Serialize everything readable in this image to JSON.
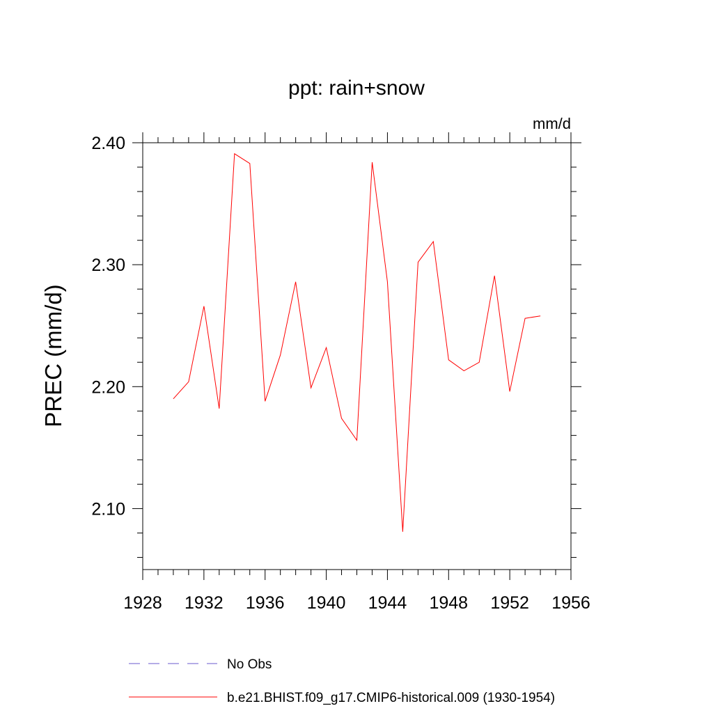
{
  "chart_data": {
    "type": "line",
    "title": "ppt: rain+snow",
    "units": "mm/d",
    "ylabel": "PREC  (mm/d)",
    "xlabel": "",
    "xlim": [
      1928,
      1956
    ],
    "ylim": [
      2.05,
      2.4
    ],
    "xticks": [
      1928,
      1932,
      1936,
      1940,
      1944,
      1948,
      1952,
      1956
    ],
    "yticks": [
      2.1,
      2.2,
      2.3,
      2.4
    ],
    "ytick_labels": [
      "2.10",
      "2.20",
      "2.30",
      "2.40"
    ],
    "series": [
      {
        "name": "b.e21.BHIST.f09_g17.CMIP6-historical.009 (1930-1954)",
        "color": "#ff0000",
        "x": [
          1930,
          1931,
          1932,
          1933,
          1934,
          1935,
          1936,
          1937,
          1938,
          1939,
          1940,
          1941,
          1942,
          1943,
          1944,
          1945,
          1946,
          1947,
          1948,
          1949,
          1950,
          1951,
          1952,
          1953,
          1954
        ],
        "values": [
          2.19,
          2.204,
          2.266,
          2.182,
          2.391,
          2.383,
          2.188,
          2.226,
          2.286,
          2.199,
          2.232,
          2.174,
          2.156,
          2.384,
          2.286,
          2.081,
          2.302,
          2.319,
          2.222,
          2.213,
          2.22,
          2.291,
          2.196,
          2.256,
          2.258
        ]
      }
    ],
    "legend": [
      {
        "label": "No Obs",
        "color": "#6a5acd",
        "style": "dashed"
      },
      {
        "label": "b.e21.BHIST.f09_g17.CMIP6-historical.009 (1930-1954)",
        "color": "#ff0000",
        "style": "solid"
      }
    ]
  }
}
